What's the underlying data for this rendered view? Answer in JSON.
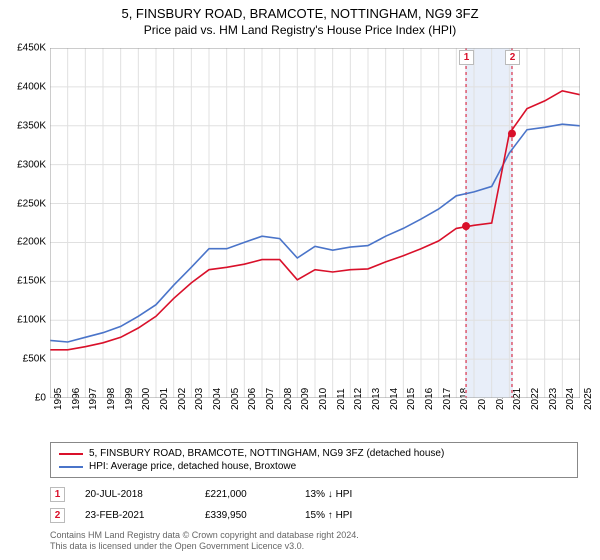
{
  "title": {
    "line1": "5, FINSBURY ROAD, BRAMCOTE, NOTTINGHAM, NG9 3FZ",
    "line2": "Price paid vs. HM Land Registry's House Price Index (HPI)",
    "fontsize_main": 13,
    "fontsize_sub": 12,
    "color": "#000000"
  },
  "chart": {
    "type": "line",
    "background_color": "#ffffff",
    "grid_color": "#e0e0e0",
    "grid_on": true,
    "x": {
      "labels": [
        "1995",
        "1996",
        "1997",
        "1998",
        "1999",
        "2000",
        "2001",
        "2002",
        "2003",
        "2004",
        "2005",
        "2006",
        "2007",
        "2008",
        "2009",
        "2010",
        "2011",
        "2012",
        "2013",
        "2014",
        "2015",
        "2016",
        "2017",
        "2018",
        "2019",
        "2020",
        "2021",
        "2022",
        "2023",
        "2024",
        "2025"
      ],
      "tick_fontsize": 10,
      "rotation_deg": -90
    },
    "y": {
      "min": 0,
      "max": 450000,
      "step": 50000,
      "tick_labels": [
        "£0",
        "£50K",
        "£100K",
        "£150K",
        "£200K",
        "£250K",
        "£300K",
        "£350K",
        "£400K",
        "£450K"
      ],
      "tick_fontsize": 10
    },
    "highlight_band": {
      "x_from_year": 2018.5,
      "x_to_year": 2021.2,
      "fill": "#e8eef9"
    },
    "series": [
      {
        "name": "5, FINSBURY ROAD, BRAMCOTE, NOTTINGHAM, NG9 3FZ (detached house)",
        "color": "#d9102a",
        "line_width": 1.6,
        "y": [
          62000,
          62000,
          66000,
          71000,
          78000,
          90000,
          105000,
          128000,
          148000,
          165000,
          168000,
          172000,
          178000,
          178000,
          152000,
          165000,
          162000,
          165000,
          166000,
          175000,
          183000,
          192000,
          202000,
          218000,
          222000,
          225000,
          340000,
          372000,
          382000,
          395000,
          390000
        ]
      },
      {
        "name": "HPI: Average price, detached house, Broxtowe",
        "color": "#4a74c9",
        "line_width": 1.6,
        "y": [
          74000,
          72000,
          78000,
          84000,
          92000,
          105000,
          120000,
          145000,
          168000,
          192000,
          192000,
          200000,
          208000,
          205000,
          180000,
          195000,
          190000,
          194000,
          196000,
          208000,
          218000,
          230000,
          243000,
          260000,
          265000,
          272000,
          315000,
          345000,
          348000,
          352000,
          350000
        ]
      }
    ],
    "markers": [
      {
        "id": "1",
        "year": 2018.55,
        "value": 221000,
        "date": "20-JUL-2018",
        "price": "£221,000",
        "delta": "13% ↓ HPI",
        "dash_color": "#d9102a",
        "box_border": "#bbbbbb",
        "label_color": "#d9102a"
      },
      {
        "id": "2",
        "year": 2021.15,
        "value": 339950,
        "date": "23-FEB-2021",
        "price": "£339,950",
        "delta": "15% ↑ HPI",
        "dash_color": "#d9102a",
        "box_border": "#bbbbbb",
        "label_color": "#d9102a"
      }
    ],
    "point_marker": {
      "radius": 4,
      "fill": "#d9102a"
    }
  },
  "legend": {
    "border": "#888888",
    "fontsize": 10
  },
  "footer": {
    "line1": "Contains HM Land Registry data © Crown copyright and database right 2024.",
    "line2": "This data is licensed under the Open Government Licence v3.0.",
    "color": "#666666",
    "fontsize": 9
  }
}
